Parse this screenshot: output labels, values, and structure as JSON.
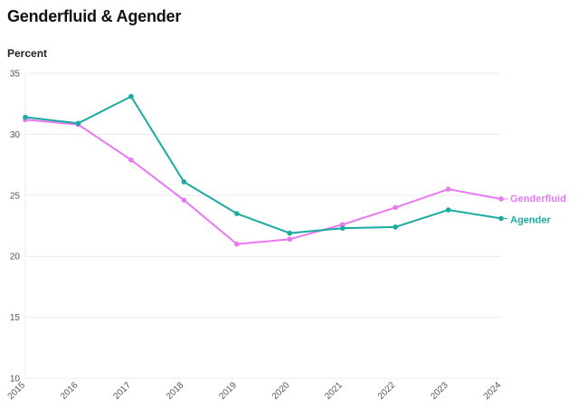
{
  "chart_data": {
    "type": "line",
    "title": "Genderfluid & Agender",
    "ylabel": "Percent",
    "xlabel": "",
    "x": [
      "2015",
      "2016",
      "2017",
      "2018",
      "2019",
      "2020",
      "2021",
      "2022",
      "2023",
      "2024"
    ],
    "ylim": [
      10,
      35
    ],
    "yticks": [
      10,
      15,
      20,
      25,
      30,
      35
    ],
    "grid": true,
    "legend": "inline-right",
    "series": [
      {
        "name": "Genderfluid",
        "color": "#e879f0",
        "values": [
          31.2,
          30.8,
          27.9,
          24.6,
          21.0,
          21.4,
          22.6,
          24.0,
          25.5,
          24.7
        ]
      },
      {
        "name": "Agender",
        "color": "#1aaba0",
        "values": [
          31.4,
          30.9,
          33.1,
          26.1,
          23.5,
          21.9,
          22.3,
          22.4,
          23.8,
          23.1
        ]
      }
    ]
  }
}
